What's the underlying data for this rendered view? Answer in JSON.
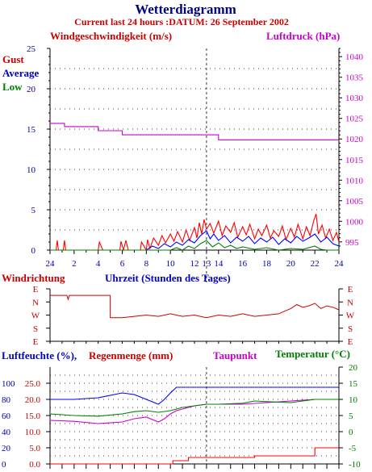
{
  "header": {
    "title": "Wetterdiagramm",
    "subtitle": "Current last 24 hours :DATUM: 26 September 2002"
  },
  "colors": {
    "navy": "#000080",
    "red": "#ff0000",
    "darkred": "#cc0000",
    "magenta": "#cc00cc",
    "blue": "#0000ff",
    "green": "#008000",
    "black": "#000000"
  },
  "chart_data": [
    {
      "type": "line",
      "panel": "wind",
      "title": "",
      "ylabel_left": "Windgeschwindigkeit (m/s)",
      "ylabel_right": "Luftdruck (hPa)",
      "xlabel": "Uhrzeit (Stunden des Tages)",
      "x_ticks": [
        "24",
        "2",
        "4",
        "6",
        "8",
        "10",
        "12",
        "13",
        "14",
        "16",
        "18",
        "20",
        "22",
        "24"
      ],
      "x_hours": [
        0,
        2,
        4,
        6,
        8,
        10,
        12,
        13,
        14,
        16,
        18,
        20,
        22,
        24
      ],
      "ylim_left": [
        0,
        25
      ],
      "y_ticks_left": [
        0,
        5,
        10,
        15,
        20,
        25
      ],
      "ylim_right": [
        993,
        1042
      ],
      "y_ticks_right": [
        995,
        1000,
        1005,
        1010,
        1015,
        1020,
        1025,
        1030,
        1035,
        1040
      ],
      "legend": [
        "Gust",
        "Average",
        "Low"
      ],
      "series": [
        {
          "name": "Gust",
          "color": "#ff0000",
          "x": [
            0,
            0.5,
            0.6,
            0.7,
            1.1,
            1.2,
            1.3,
            4.0,
            4.1,
            4.3,
            4.4,
            5.8,
            5.9,
            6.1,
            6.3,
            6.5,
            7.5,
            7.6,
            8.0,
            8.1,
            8.3,
            8.6,
            9.0,
            9.3,
            9.6,
            10.0,
            10.3,
            10.6,
            11.0,
            11.3,
            11.6,
            12.0,
            12.2,
            12.4,
            12.6,
            12.8,
            13.0,
            13.3,
            13.6,
            14.0,
            14.3,
            14.6,
            15.0,
            15.3,
            15.6,
            16.0,
            16.3,
            16.6,
            17.0,
            17.3,
            17.6,
            18.0,
            18.3,
            18.6,
            19.0,
            19.3,
            19.6,
            20.0,
            20.3,
            20.6,
            21.0,
            21.3,
            21.6,
            21.9,
            22.1,
            22.3,
            22.6,
            22.9,
            23.2,
            23.5,
            23.8,
            24.0
          ],
          "y": [
            0,
            0,
            1.2,
            0,
            0,
            1.2,
            0,
            0,
            1.0,
            0.3,
            0,
            0,
            1.1,
            0,
            1.2,
            0,
            0,
            1.0,
            0,
            1.3,
            0.2,
            1.5,
            0.6,
            1.8,
            0.9,
            2.0,
            1.1,
            2.3,
            1.0,
            2.5,
            1.2,
            2.8,
            1.5,
            3.4,
            2.0,
            3.8,
            2.6,
            3.3,
            2.1,
            3.6,
            1.8,
            3.0,
            2.2,
            3.4,
            1.6,
            2.9,
            1.9,
            3.2,
            1.4,
            2.6,
            1.8,
            3.1,
            1.5,
            2.4,
            1.7,
            3.0,
            1.3,
            2.7,
            1.6,
            3.2,
            1.4,
            2.9,
            1.8,
            3.6,
            4.5,
            2.0,
            3.1,
            1.5,
            2.6,
            1.2,
            2.2,
            1.0
          ]
        },
        {
          "name": "Average",
          "color": "#0000ff",
          "x": [
            0,
            8.0,
            8.5,
            9.0,
            9.5,
            10.0,
            10.5,
            11.0,
            11.5,
            12.0,
            12.5,
            13.0,
            13.3,
            13.6,
            14.0,
            14.5,
            15.0,
            15.5,
            16.0,
            16.5,
            17.0,
            17.5,
            18.0,
            18.5,
            19.0,
            19.5,
            20.0,
            20.5,
            21.0,
            21.5,
            22.0,
            22.5,
            23.0,
            23.5,
            24.0
          ],
          "y": [
            0,
            0,
            0.5,
            0.2,
            0.8,
            0.4,
            1.0,
            0.6,
            1.3,
            0.9,
            1.8,
            2.4,
            1.4,
            2.0,
            1.2,
            1.8,
            0.9,
            1.6,
            1.1,
            1.7,
            0.8,
            1.5,
            1.0,
            1.6,
            0.7,
            1.4,
            0.9,
            1.7,
            1.1,
            1.5,
            2.0,
            1.0,
            1.6,
            0.8,
            0.5
          ]
        },
        {
          "name": "Low",
          "color": "#008000",
          "x": [
            0,
            10.0,
            10.5,
            11.0,
            11.5,
            12.0,
            12.5,
            13.0,
            13.5,
            14.0,
            14.5,
            15.0,
            15.5,
            16.0,
            17.0,
            18.0,
            19.0,
            20.0,
            21.0,
            22.0,
            22.5,
            23.0,
            24.0
          ],
          "y": [
            0,
            0,
            0.3,
            0,
            0.5,
            0.2,
            0.8,
            1.2,
            0.4,
            0.9,
            0.3,
            0.6,
            0.2,
            0.4,
            0.1,
            0.3,
            0,
            0.2,
            0.1,
            0.5,
            0.1,
            0,
            0
          ]
        },
        {
          "name": "Luftdruck",
          "color": "#cc00cc",
          "axis": "right",
          "x": [
            0,
            1.2,
            1.2,
            4.0,
            4.0,
            6.0,
            6.0,
            14.0,
            14.0,
            24.0
          ],
          "y": [
            1023.8,
            1023.8,
            1023,
            1023,
            1022,
            1022,
            1021,
            1021,
            1019.8,
            1019.8
          ]
        }
      ]
    },
    {
      "type": "line",
      "panel": "wind_direction",
      "title": "Windrichtung",
      "y_ticks": [
        "E",
        "N",
        "W",
        "S",
        "E"
      ],
      "series": [
        {
          "name": "Windrichtung",
          "color": "#cc0000",
          "x": [
            0,
            1.4,
            1.5,
            1.6,
            5.0,
            5.0,
            6.0,
            7.0,
            8.0,
            9.0,
            10.0,
            11.0,
            12.0,
            13.0,
            14.0,
            15.0,
            16.0,
            17.0,
            18.0,
            19.0,
            19.5,
            20.0,
            20.5,
            21.0,
            21.5,
            22.0,
            22.5,
            23.0,
            23.5,
            24.0
          ],
          "y": [
            3.5,
            3.5,
            3.2,
            3.5,
            3.5,
            1.8,
            1.8,
            1.9,
            2.0,
            1.9,
            2.1,
            1.9,
            2.0,
            1.8,
            2.0,
            1.9,
            2.1,
            1.9,
            2.0,
            2.1,
            2.3,
            2.5,
            2.8,
            2.6,
            2.7,
            2.9,
            2.5,
            2.7,
            2.6,
            2.4
          ]
        }
      ]
    },
    {
      "type": "line",
      "panel": "humidity",
      "ylabel_left": "Luftfeuchte (%),",
      "ylabel_left2": "Regenmenge (mm)",
      "ylabel_right": "Taupunkt",
      "ylabel_right2": "Temperatur (°C)",
      "y_ticks_humidity": [
        0,
        20,
        40,
        60,
        80,
        100
      ],
      "y_ticks_rain": [
        "0.0",
        "5.0",
        "10.0",
        "15.0",
        "20.0",
        "25.0"
      ],
      "y_ticks_temp": [
        -10,
        -5,
        0,
        5,
        10,
        15,
        20
      ],
      "ylim_humidity": [
        0,
        120
      ],
      "ylim_rain": [
        0,
        30
      ],
      "ylim_temp": [
        -10,
        20
      ],
      "series": [
        {
          "name": "Luftfeuchte",
          "color": "#0000ff",
          "x": [
            0,
            2,
            4,
            6,
            7,
            8,
            9,
            9.5,
            10,
            10.5,
            11,
            12,
            14,
            16,
            18,
            20,
            22,
            24
          ],
          "y": [
            80,
            80,
            82,
            88,
            86,
            80,
            74,
            80,
            88,
            95,
            95,
            95,
            95,
            95,
            95,
            95,
            95,
            95
          ]
        },
        {
          "name": "Taupunkt",
          "color": "#cc00cc",
          "axis": "temp",
          "x": [
            0,
            2,
            4,
            6,
            7,
            8,
            9,
            9.5,
            10,
            10.5,
            11,
            12,
            13,
            14,
            16,
            18,
            20,
            22,
            24
          ],
          "y": [
            3.5,
            3.2,
            2.5,
            3.0,
            4.0,
            4.5,
            3.0,
            4.0,
            5.5,
            6.5,
            7.0,
            8.0,
            8.5,
            8.5,
            8.5,
            9.0,
            9.5,
            10,
            10
          ]
        },
        {
          "name": "Temperatur",
          "color": "#008000",
          "axis": "temp",
          "x": [
            0,
            2,
            4,
            6,
            7,
            8,
            9,
            10,
            11,
            12,
            13,
            14,
            16,
            17,
            18,
            20,
            21,
            22,
            24
          ],
          "y": [
            5.5,
            5.0,
            4.8,
            5.5,
            6.2,
            6.5,
            6.0,
            6.5,
            7.5,
            8.0,
            8.5,
            8.5,
            8.8,
            9.5,
            9.3,
            9.0,
            9.5,
            10,
            10
          ]
        },
        {
          "name": "Regenmenge",
          "color": "#ff0000",
          "axis": "rain",
          "x": [
            0,
            10.2,
            10.2,
            11.5,
            11.5,
            17,
            17,
            22,
            22,
            24
          ],
          "y": [
            0,
            0,
            1.0,
            1.0,
            2.0,
            2.0,
            2.5,
            2.5,
            5.0,
            5.0
          ]
        }
      ]
    }
  ]
}
